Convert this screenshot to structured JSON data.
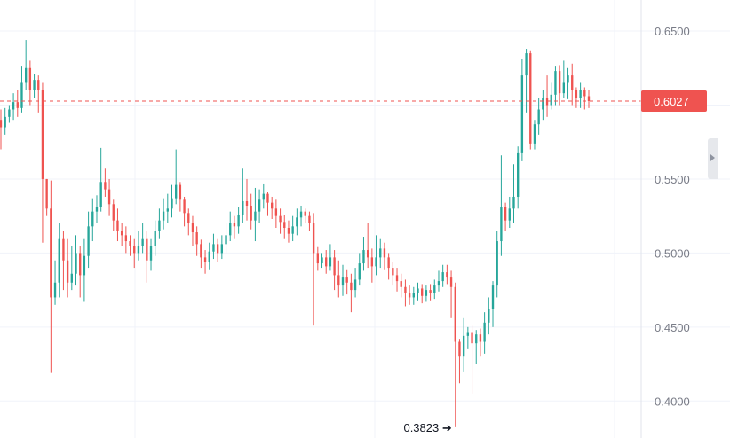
{
  "chart_data": {
    "type": "candlestick",
    "title": "",
    "y_ticks": [
      "0.6500",
      "0.5500",
      "0.5000",
      "0.4500",
      "0.4000"
    ],
    "ylim": [
      0.375,
      0.671
    ],
    "last_price": 0.6027,
    "last_price_label": "0.6027",
    "low_label": "0.3823",
    "low_marker": "0.3823 ➔",
    "colors": {
      "up": "#26a69a",
      "down": "#ef5350",
      "grid": "#f0f3fa",
      "axis_text": "#787b86"
    },
    "candles": [
      [
        0.59,
        0.585,
        0.597,
        0.57
      ],
      [
        0.585,
        0.592,
        0.598,
        0.58
      ],
      [
        0.592,
        0.597,
        0.6,
        0.588
      ],
      [
        0.597,
        0.602,
        0.608,
        0.59
      ],
      [
        0.602,
        0.598,
        0.61,
        0.592
      ],
      [
        0.598,
        0.615,
        0.626,
        0.595
      ],
      [
        0.615,
        0.625,
        0.644,
        0.61
      ],
      [
        0.625,
        0.61,
        0.63,
        0.6
      ],
      [
        0.61,
        0.617,
        0.621,
        0.605
      ],
      [
        0.617,
        0.61,
        0.62,
        0.595
      ],
      [
        0.61,
        0.55,
        0.615,
        0.507
      ],
      [
        0.55,
        0.53,
        0.55,
        0.525
      ],
      [
        0.53,
        0.47,
        0.549,
        0.419
      ],
      [
        0.47,
        0.48,
        0.495,
        0.465
      ],
      [
        0.48,
        0.51,
        0.52,
        0.47
      ],
      [
        0.51,
        0.495,
        0.515,
        0.475
      ],
      [
        0.495,
        0.48,
        0.51,
        0.47
      ],
      [
        0.48,
        0.486,
        0.505,
        0.475
      ],
      [
        0.486,
        0.5,
        0.512,
        0.478
      ],
      [
        0.5,
        0.485,
        0.505,
        0.47
      ],
      [
        0.485,
        0.498,
        0.51,
        0.467
      ],
      [
        0.498,
        0.518,
        0.528,
        0.49
      ],
      [
        0.518,
        0.528,
        0.537,
        0.508
      ],
      [
        0.528,
        0.531,
        0.539,
        0.52
      ],
      [
        0.531,
        0.548,
        0.571,
        0.528
      ],
      [
        0.548,
        0.543,
        0.557,
        0.538
      ],
      [
        0.543,
        0.533,
        0.55,
        0.525
      ],
      [
        0.533,
        0.522,
        0.536,
        0.515
      ],
      [
        0.522,
        0.515,
        0.53,
        0.508
      ],
      [
        0.515,
        0.512,
        0.52,
        0.505
      ],
      [
        0.512,
        0.508,
        0.518,
        0.5
      ],
      [
        0.508,
        0.505,
        0.512,
        0.498
      ],
      [
        0.505,
        0.5,
        0.51,
        0.49
      ],
      [
        0.5,
        0.505,
        0.515,
        0.495
      ],
      [
        0.505,
        0.51,
        0.52,
        0.5
      ],
      [
        0.51,
        0.495,
        0.515,
        0.48
      ],
      [
        0.495,
        0.505,
        0.51,
        0.488
      ],
      [
        0.505,
        0.515,
        0.522,
        0.498
      ],
      [
        0.515,
        0.522,
        0.53,
        0.51
      ],
      [
        0.522,
        0.528,
        0.537,
        0.516
      ],
      [
        0.528,
        0.53,
        0.54,
        0.52
      ],
      [
        0.53,
        0.537,
        0.546,
        0.524
      ],
      [
        0.537,
        0.546,
        0.57,
        0.533
      ],
      [
        0.546,
        0.536,
        0.548,
        0.528
      ],
      [
        0.536,
        0.527,
        0.538,
        0.518
      ],
      [
        0.527,
        0.52,
        0.53,
        0.512
      ],
      [
        0.52,
        0.514,
        0.525,
        0.505
      ],
      [
        0.514,
        0.506,
        0.518,
        0.498
      ],
      [
        0.506,
        0.497,
        0.509,
        0.49
      ],
      [
        0.497,
        0.494,
        0.502,
        0.486
      ],
      [
        0.494,
        0.501,
        0.507,
        0.489
      ],
      [
        0.501,
        0.506,
        0.513,
        0.496
      ],
      [
        0.506,
        0.5,
        0.51,
        0.494
      ],
      [
        0.5,
        0.506,
        0.512,
        0.496
      ],
      [
        0.506,
        0.512,
        0.52,
        0.5
      ],
      [
        0.512,
        0.52,
        0.528,
        0.508
      ],
      [
        0.52,
        0.518,
        0.525,
        0.51
      ],
      [
        0.518,
        0.526,
        0.531,
        0.513
      ],
      [
        0.526,
        0.535,
        0.557,
        0.52
      ],
      [
        0.535,
        0.532,
        0.55,
        0.522
      ],
      [
        0.532,
        0.522,
        0.54,
        0.516
      ],
      [
        0.522,
        0.528,
        0.544,
        0.508
      ],
      [
        0.528,
        0.536,
        0.543,
        0.52
      ],
      [
        0.536,
        0.54,
        0.547,
        0.53
      ],
      [
        0.54,
        0.534,
        0.541,
        0.525
      ],
      [
        0.534,
        0.53,
        0.538,
        0.523
      ],
      [
        0.53,
        0.525,
        0.536,
        0.517
      ],
      [
        0.525,
        0.521,
        0.53,
        0.513
      ],
      [
        0.521,
        0.517,
        0.526,
        0.51
      ],
      [
        0.517,
        0.513,
        0.522,
        0.507
      ],
      [
        0.513,
        0.518,
        0.525,
        0.508
      ],
      [
        0.518,
        0.524,
        0.53,
        0.512
      ],
      [
        0.524,
        0.528,
        0.532,
        0.518
      ],
      [
        0.528,
        0.525,
        0.53,
        0.52
      ],
      [
        0.525,
        0.52,
        0.528,
        0.515
      ],
      [
        0.52,
        0.5,
        0.527,
        0.451
      ],
      [
        0.5,
        0.493,
        0.504,
        0.488
      ],
      [
        0.493,
        0.497,
        0.5,
        0.49
      ],
      [
        0.497,
        0.491,
        0.502,
        0.486
      ],
      [
        0.491,
        0.497,
        0.506,
        0.488
      ],
      [
        0.497,
        0.485,
        0.502,
        0.475
      ],
      [
        0.485,
        0.478,
        0.495,
        0.47
      ],
      [
        0.478,
        0.484,
        0.492,
        0.471
      ],
      [
        0.484,
        0.48,
        0.489,
        0.472
      ],
      [
        0.48,
        0.475,
        0.486,
        0.46
      ],
      [
        0.475,
        0.482,
        0.49,
        0.47
      ],
      [
        0.482,
        0.493,
        0.5,
        0.478
      ],
      [
        0.493,
        0.502,
        0.511,
        0.488
      ],
      [
        0.502,
        0.497,
        0.52,
        0.49
      ],
      [
        0.497,
        0.491,
        0.503,
        0.48
      ],
      [
        0.491,
        0.497,
        0.512,
        0.485
      ],
      [
        0.497,
        0.503,
        0.51,
        0.49
      ],
      [
        0.503,
        0.497,
        0.507,
        0.489
      ],
      [
        0.497,
        0.49,
        0.5,
        0.482
      ],
      [
        0.49,
        0.485,
        0.494,
        0.478
      ],
      [
        0.485,
        0.481,
        0.49,
        0.474
      ],
      [
        0.481,
        0.477,
        0.486,
        0.47
      ],
      [
        0.477,
        0.473,
        0.482,
        0.464
      ],
      [
        0.473,
        0.47,
        0.478,
        0.465
      ],
      [
        0.47,
        0.473,
        0.477,
        0.465
      ],
      [
        0.473,
        0.476,
        0.48,
        0.468
      ],
      [
        0.476,
        0.471,
        0.479,
        0.466
      ],
      [
        0.471,
        0.475,
        0.478,
        0.467
      ],
      [
        0.475,
        0.473,
        0.479,
        0.468
      ],
      [
        0.473,
        0.478,
        0.482,
        0.469
      ],
      [
        0.478,
        0.481,
        0.488,
        0.474
      ],
      [
        0.481,
        0.487,
        0.492,
        0.477
      ],
      [
        0.487,
        0.484,
        0.492,
        0.479
      ],
      [
        0.484,
        0.477,
        0.488,
        0.456
      ],
      [
        0.477,
        0.44,
        0.48,
        0.3823
      ],
      [
        0.44,
        0.43,
        0.442,
        0.412
      ],
      [
        0.43,
        0.444,
        0.456,
        0.42
      ],
      [
        0.444,
        0.446,
        0.45,
        0.435
      ],
      [
        0.446,
        0.439,
        0.451,
        0.405
      ],
      [
        0.439,
        0.445,
        0.448,
        0.425
      ],
      [
        0.445,
        0.44,
        0.449,
        0.43
      ],
      [
        0.44,
        0.453,
        0.46,
        0.432
      ],
      [
        0.453,
        0.462,
        0.47,
        0.445
      ],
      [
        0.462,
        0.478,
        0.481,
        0.45
      ],
      [
        0.478,
        0.508,
        0.515,
        0.47
      ],
      [
        0.508,
        0.531,
        0.566,
        0.498
      ],
      [
        0.531,
        0.522,
        0.534,
        0.515
      ],
      [
        0.522,
        0.53,
        0.538,
        0.517
      ],
      [
        0.53,
        0.538,
        0.56,
        0.52
      ],
      [
        0.538,
        0.568,
        0.572,
        0.53
      ],
      [
        0.568,
        0.62,
        0.631,
        0.562
      ],
      [
        0.62,
        0.635,
        0.638,
        0.595
      ],
      [
        0.635,
        0.574,
        0.637,
        0.57
      ],
      [
        0.574,
        0.587,
        0.59,
        0.57
      ],
      [
        0.587,
        0.597,
        0.605,
        0.58
      ],
      [
        0.597,
        0.605,
        0.61,
        0.59
      ],
      [
        0.605,
        0.6,
        0.62,
        0.592
      ],
      [
        0.6,
        0.607,
        0.615,
        0.597
      ],
      [
        0.607,
        0.623,
        0.626,
        0.6
      ],
      [
        0.623,
        0.608,
        0.627,
        0.6
      ],
      [
        0.608,
        0.615,
        0.63,
        0.605
      ],
      [
        0.615,
        0.62,
        0.625,
        0.604
      ],
      [
        0.62,
        0.61,
        0.628,
        0.6
      ],
      [
        0.61,
        0.605,
        0.612,
        0.598
      ],
      [
        0.605,
        0.61,
        0.615,
        0.598
      ],
      [
        0.61,
        0.606,
        0.612,
        0.597
      ],
      [
        0.606,
        0.6027,
        0.61,
        0.598
      ]
    ]
  }
}
